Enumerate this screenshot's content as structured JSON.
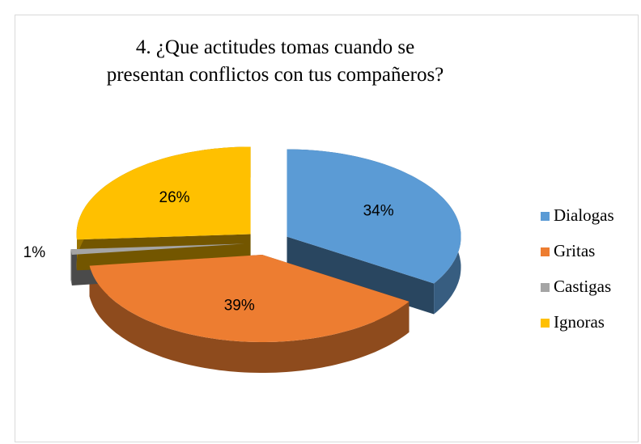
{
  "chart_data": {
    "type": "pie",
    "title": "4. ¿Que actitudes tomas cuando se presentan conflictos con tus compañeros?",
    "categories": [
      "Dialogas",
      "Gritas",
      "Castigas",
      "Ignoras"
    ],
    "values": [
      34,
      39,
      1,
      26
    ],
    "value_labels": [
      "34%",
      "39%",
      "1%",
      "26%"
    ],
    "colors": [
      "#5b9bd5",
      "#ed7d31",
      "#a5a5a5",
      "#ffc000"
    ],
    "legend": "right"
  }
}
